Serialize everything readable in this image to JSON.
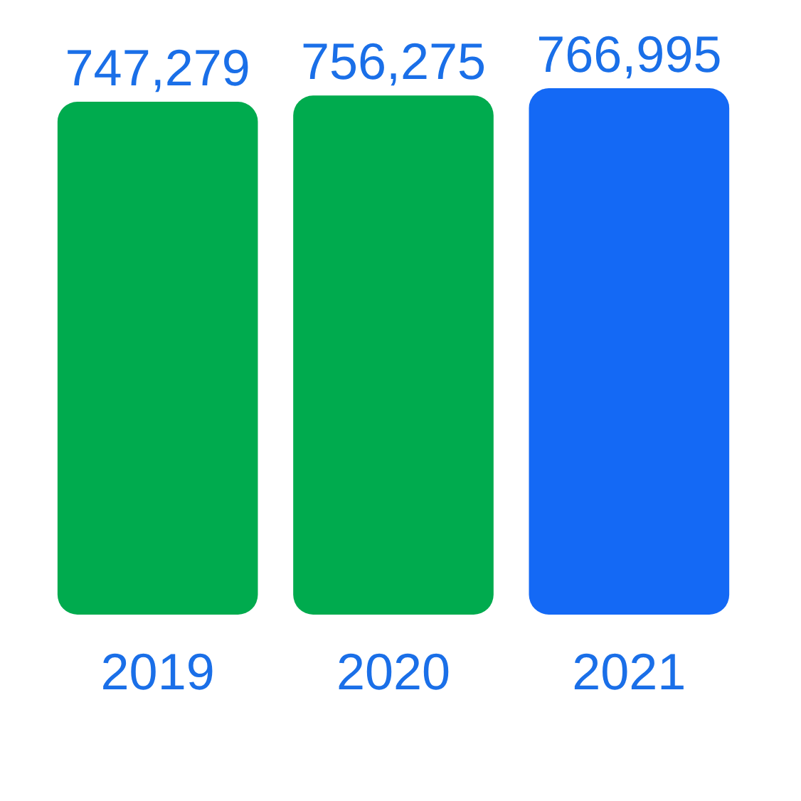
{
  "chart_data": {
    "type": "bar",
    "categories": [
      "2019",
      "2020",
      "2021"
    ],
    "values": [
      747279,
      756275,
      766995
    ],
    "colors": [
      "#00ab4e",
      "#00ab4e",
      "#1469f5"
    ],
    "value_labels": [
      "747,279",
      "756,275",
      "766,995"
    ],
    "tick_labels": "x"
  }
}
